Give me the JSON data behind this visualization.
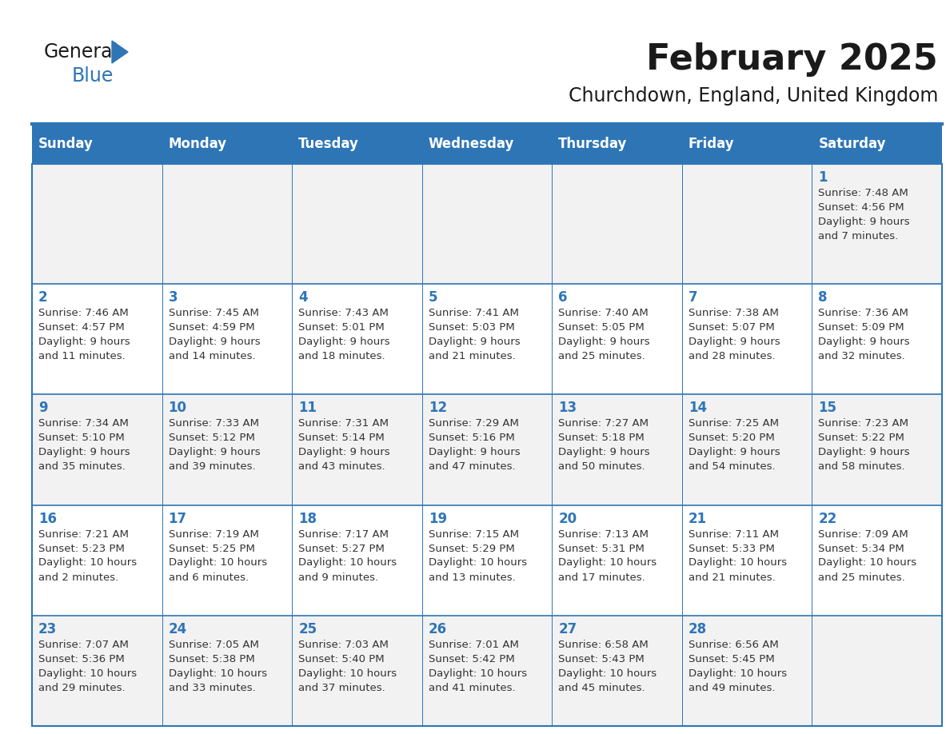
{
  "title": "February 2025",
  "subtitle": "Churchdown, England, United Kingdom",
  "header_bg": "#2E75B6",
  "header_text_color": "#FFFFFF",
  "cell_bg_odd": "#F2F2F2",
  "cell_bg_even": "#FFFFFF",
  "day_headers": [
    "Sunday",
    "Monday",
    "Tuesday",
    "Wednesday",
    "Thursday",
    "Friday",
    "Saturday"
  ],
  "title_color": "#1a1a1a",
  "subtitle_color": "#1a1a1a",
  "day_num_color": "#2E75B6",
  "cell_text_color": "#333333",
  "border_color": "#2E75B6",
  "logo_text_color": "#1a1a1a",
  "logo_blue_color": "#2E75B6",
  "calendar": [
    [
      null,
      null,
      null,
      null,
      null,
      null,
      {
        "day": 1,
        "sunrise": "7:48 AM",
        "sunset": "4:56 PM",
        "daylight": "9 hours",
        "daylight2": "and 7 minutes."
      }
    ],
    [
      {
        "day": 2,
        "sunrise": "7:46 AM",
        "sunset": "4:57 PM",
        "daylight": "9 hours",
        "daylight2": "and 11 minutes."
      },
      {
        "day": 3,
        "sunrise": "7:45 AM",
        "sunset": "4:59 PM",
        "daylight": "9 hours",
        "daylight2": "and 14 minutes."
      },
      {
        "day": 4,
        "sunrise": "7:43 AM",
        "sunset": "5:01 PM",
        "daylight": "9 hours",
        "daylight2": "and 18 minutes."
      },
      {
        "day": 5,
        "sunrise": "7:41 AM",
        "sunset": "5:03 PM",
        "daylight": "9 hours",
        "daylight2": "and 21 minutes."
      },
      {
        "day": 6,
        "sunrise": "7:40 AM",
        "sunset": "5:05 PM",
        "daylight": "9 hours",
        "daylight2": "and 25 minutes."
      },
      {
        "day": 7,
        "sunrise": "7:38 AM",
        "sunset": "5:07 PM",
        "daylight": "9 hours",
        "daylight2": "and 28 minutes."
      },
      {
        "day": 8,
        "sunrise": "7:36 AM",
        "sunset": "5:09 PM",
        "daylight": "9 hours",
        "daylight2": "and 32 minutes."
      }
    ],
    [
      {
        "day": 9,
        "sunrise": "7:34 AM",
        "sunset": "5:10 PM",
        "daylight": "9 hours",
        "daylight2": "and 35 minutes."
      },
      {
        "day": 10,
        "sunrise": "7:33 AM",
        "sunset": "5:12 PM",
        "daylight": "9 hours",
        "daylight2": "and 39 minutes."
      },
      {
        "day": 11,
        "sunrise": "7:31 AM",
        "sunset": "5:14 PM",
        "daylight": "9 hours",
        "daylight2": "and 43 minutes."
      },
      {
        "day": 12,
        "sunrise": "7:29 AM",
        "sunset": "5:16 PM",
        "daylight": "9 hours",
        "daylight2": "and 47 minutes."
      },
      {
        "day": 13,
        "sunrise": "7:27 AM",
        "sunset": "5:18 PM",
        "daylight": "9 hours",
        "daylight2": "and 50 minutes."
      },
      {
        "day": 14,
        "sunrise": "7:25 AM",
        "sunset": "5:20 PM",
        "daylight": "9 hours",
        "daylight2": "and 54 minutes."
      },
      {
        "day": 15,
        "sunrise": "7:23 AM",
        "sunset": "5:22 PM",
        "daylight": "9 hours",
        "daylight2": "and 58 minutes."
      }
    ],
    [
      {
        "day": 16,
        "sunrise": "7:21 AM",
        "sunset": "5:23 PM",
        "daylight": "10 hours",
        "daylight2": "and 2 minutes."
      },
      {
        "day": 17,
        "sunrise": "7:19 AM",
        "sunset": "5:25 PM",
        "daylight": "10 hours",
        "daylight2": "and 6 minutes."
      },
      {
        "day": 18,
        "sunrise": "7:17 AM",
        "sunset": "5:27 PM",
        "daylight": "10 hours",
        "daylight2": "and 9 minutes."
      },
      {
        "day": 19,
        "sunrise": "7:15 AM",
        "sunset": "5:29 PM",
        "daylight": "10 hours",
        "daylight2": "and 13 minutes."
      },
      {
        "day": 20,
        "sunrise": "7:13 AM",
        "sunset": "5:31 PM",
        "daylight": "10 hours",
        "daylight2": "and 17 minutes."
      },
      {
        "day": 21,
        "sunrise": "7:11 AM",
        "sunset": "5:33 PM",
        "daylight": "10 hours",
        "daylight2": "and 21 minutes."
      },
      {
        "day": 22,
        "sunrise": "7:09 AM",
        "sunset": "5:34 PM",
        "daylight": "10 hours",
        "daylight2": "and 25 minutes."
      }
    ],
    [
      {
        "day": 23,
        "sunrise": "7:07 AM",
        "sunset": "5:36 PM",
        "daylight": "10 hours",
        "daylight2": "and 29 minutes."
      },
      {
        "day": 24,
        "sunrise": "7:05 AM",
        "sunset": "5:38 PM",
        "daylight": "10 hours",
        "daylight2": "and 33 minutes."
      },
      {
        "day": 25,
        "sunrise": "7:03 AM",
        "sunset": "5:40 PM",
        "daylight": "10 hours",
        "daylight2": "and 37 minutes."
      },
      {
        "day": 26,
        "sunrise": "7:01 AM",
        "sunset": "5:42 PM",
        "daylight": "10 hours",
        "daylight2": "and 41 minutes."
      },
      {
        "day": 27,
        "sunrise": "6:58 AM",
        "sunset": "5:43 PM",
        "daylight": "10 hours",
        "daylight2": "and 45 minutes."
      },
      {
        "day": 28,
        "sunrise": "6:56 AM",
        "sunset": "5:45 PM",
        "daylight": "10 hours",
        "daylight2": "and 49 minutes."
      },
      null
    ]
  ]
}
